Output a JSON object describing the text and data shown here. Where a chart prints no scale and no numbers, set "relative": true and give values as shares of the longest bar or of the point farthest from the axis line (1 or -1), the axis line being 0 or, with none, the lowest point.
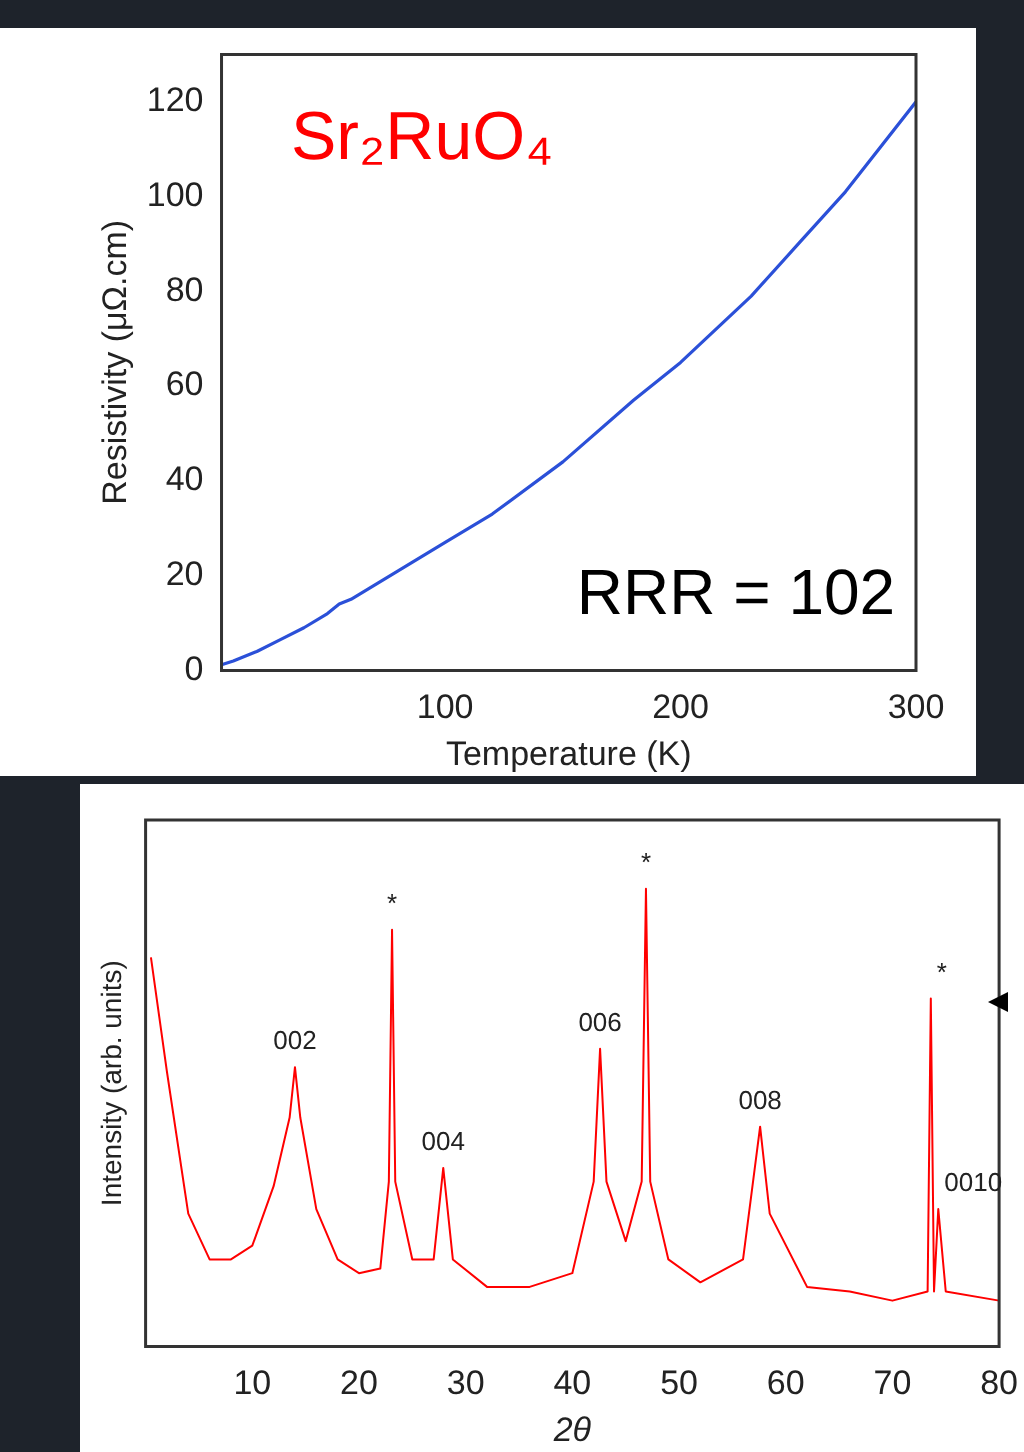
{
  "chart_data": [
    {
      "type": "line",
      "xlabel": "Temperature (K)",
      "ylabel": "Resistivity (μΩ.cm)",
      "annotations": [
        "Sr₂RuO₄",
        "RRR = 102"
      ],
      "x": [
        5,
        10,
        20,
        30,
        40,
        50,
        55,
        60,
        80,
        100,
        120,
        150,
        180,
        200,
        230,
        250,
        270,
        300
      ],
      "series": [
        {
          "color": "#2b50d8",
          "values": [
            1.2,
            2,
            4,
            6.5,
            9,
            12,
            14,
            15,
            21,
            27,
            33,
            44,
            57,
            65,
            79,
            90,
            101,
            120
          ]
        }
      ],
      "xlim": [
        5,
        300
      ],
      "xticks": [
        100,
        200,
        300
      ],
      "ylim": [
        0,
        130
      ],
      "yticks": [
        0,
        20,
        40,
        60,
        80,
        100,
        120
      ]
    },
    {
      "type": "line",
      "relative": true,
      "xlabel": "2θ",
      "ylabel": "Intensity (arb. units)",
      "annotations": [
        {
          "text": "002",
          "x": 14,
          "y": 0.61
        },
        {
          "text": "004",
          "x": 27.9,
          "y": 0.39
        },
        {
          "text": "006",
          "x": 42.6,
          "y": 0.65
        },
        {
          "text": "008",
          "x": 57.6,
          "y": 0.48
        },
        {
          "text": "0010",
          "x": 74.3,
          "y": 0.3
        },
        {
          "text": "*",
          "x": 23.1,
          "y": 0.91
        },
        {
          "text": "*",
          "x": 46.9,
          "y": 1
        },
        {
          "text": "*",
          "x": 73.6,
          "y": 0.76
        }
      ],
      "x": [
        0.5,
        2,
        4,
        6,
        8,
        10,
        12,
        13.5,
        14,
        14.5,
        16,
        18,
        20,
        22,
        22.8,
        23.1,
        23.4,
        25,
        27,
        27.9,
        28.8,
        32,
        36,
        40,
        42,
        42.6,
        43.2,
        45,
        46.5,
        46.9,
        47.3,
        49,
        52,
        56,
        57.6,
        58.5,
        62,
        66,
        70,
        73.3,
        73.6,
        73.9,
        74.3,
        75,
        80
      ],
      "series": [
        {
          "color": "#ff0000",
          "values": [
            0.85,
            0.6,
            0.29,
            0.19,
            0.19,
            0.22,
            0.35,
            0.5,
            0.61,
            0.5,
            0.3,
            0.19,
            0.16,
            0.17,
            0.36,
            0.91,
            0.36,
            0.19,
            0.19,
            0.39,
            0.19,
            0.13,
            0.13,
            0.16,
            0.36,
            0.65,
            0.36,
            0.23,
            0.36,
            1,
            0.36,
            0.19,
            0.14,
            0.19,
            0.48,
            0.29,
            0.13,
            0.12,
            0.1,
            0.12,
            0.76,
            0.12,
            0.3,
            0.12,
            0.1
          ]
        }
      ],
      "xlim": [
        0,
        80
      ],
      "xticks": [
        10,
        20,
        30,
        40,
        50,
        60,
        70,
        80
      ]
    }
  ]
}
